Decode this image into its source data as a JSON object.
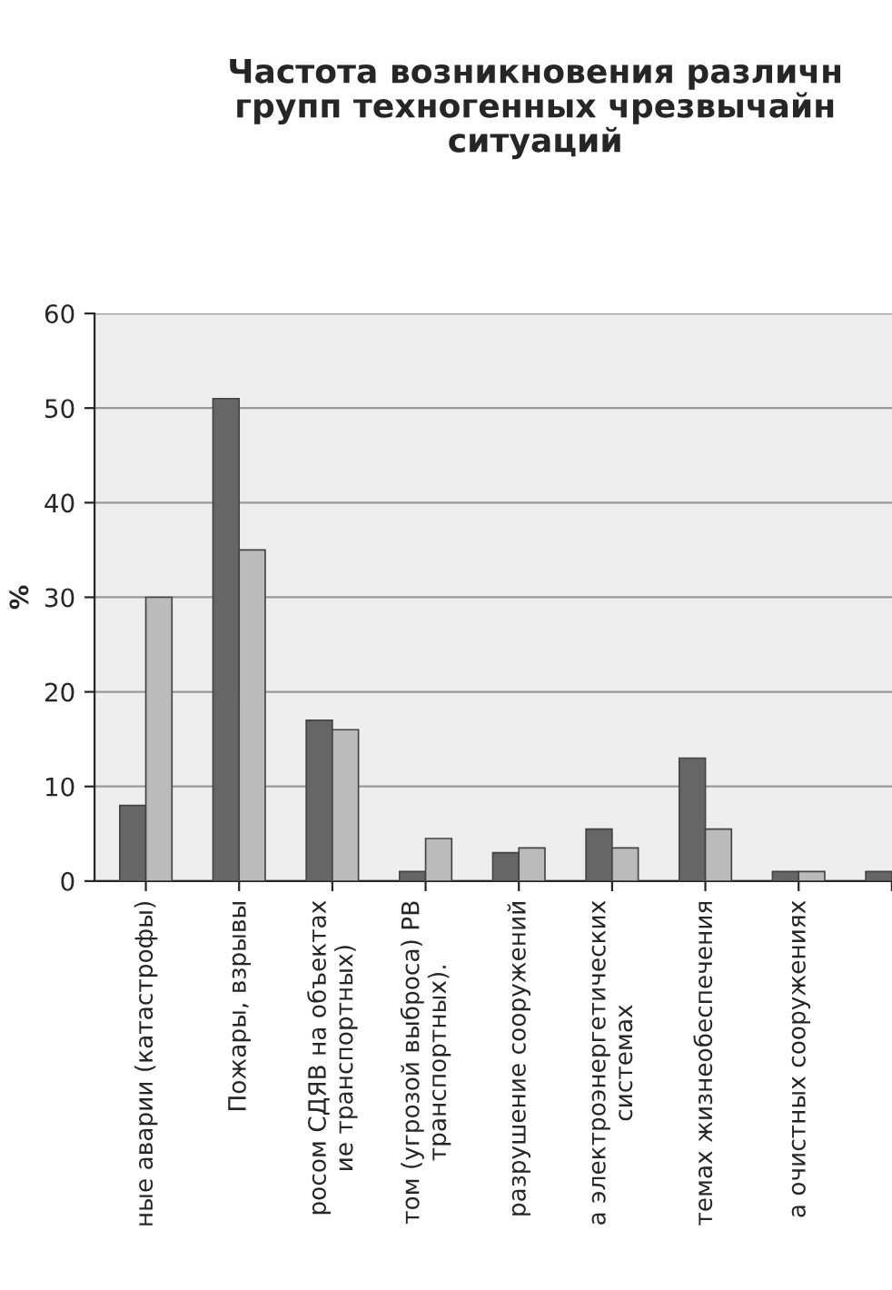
{
  "chart_data": {
    "type": "bar",
    "title": "Частота возникновения различн\nгрупп техногенных чрезвычайн\nситуаций",
    "ylabel": "%",
    "categories": [
      "ные аварии (катастрофы)",
      "Пожары, взрывы",
      "росом СДЯВ на объектах\nие транспортных)",
      "том (угрозой выброса) РВ\nтранспортных).",
      "разрушение сооружений",
      "а электроэнергетических\nсистемах",
      "темах жизнеобеспечения",
      "а очистных сооружениях",
      null
    ],
    "series": [
      {
        "color": "#666666",
        "values": [
          8,
          51,
          17,
          1,
          3,
          5.5,
          13,
          1,
          1
        ]
      },
      {
        "color": "#bbbbbb",
        "values": [
          30,
          35,
          16,
          4.5,
          3.5,
          3.5,
          5.5,
          1,
          null
        ]
      }
    ],
    "ylim": [
      0,
      60
    ],
    "yticks": [
      0,
      10,
      20,
      30,
      40,
      50,
      60
    ],
    "grid": "y"
  }
}
